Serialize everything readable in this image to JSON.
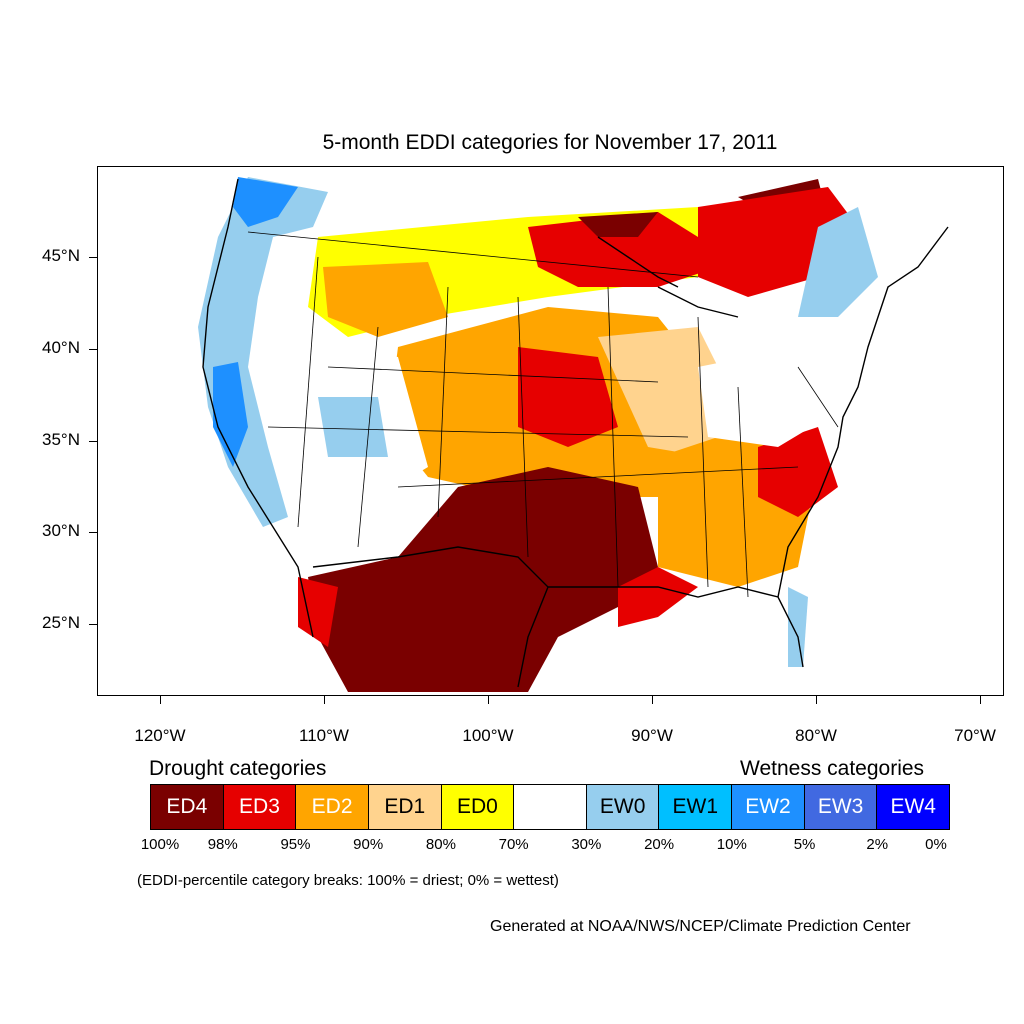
{
  "map": {
    "title": "5-month EDDI categories for November 17, 2011",
    "lat_labels": [
      "45°N",
      "40°N",
      "35°N",
      "30°N",
      "25°N"
    ],
    "lon_labels": [
      "120°W",
      "110°W",
      "100°W",
      "90°W",
      "80°W",
      "70°W"
    ],
    "regions": [
      {
        "name": "southern-plains",
        "category": "ED4",
        "color": "#7a0000"
      },
      {
        "name": "northern-great-lakes",
        "category": "ED3",
        "color": "#e60000"
      },
      {
        "name": "pacific-coast",
        "category": "EW2",
        "color": "#1e90ff"
      },
      {
        "name": "central-plains",
        "category": "ED2",
        "color": "#ffa500"
      }
    ]
  },
  "legend": {
    "drought_heading": "Drought categories",
    "wetness_heading": "Wetness categories",
    "categories": [
      {
        "label": "ED4",
        "color": "#7a0000",
        "text_color": "#ffffff"
      },
      {
        "label": "ED3",
        "color": "#e60000",
        "text_color": "#ffffff"
      },
      {
        "label": "ED2",
        "color": "#ffa500",
        "text_color": "#ffffff"
      },
      {
        "label": "ED1",
        "color": "#ffd38e",
        "text_color": "#000000"
      },
      {
        "label": "ED0",
        "color": "#ffff00",
        "text_color": "#000000"
      },
      {
        "label": "",
        "color": "#ffffff",
        "text_color": "#000000"
      },
      {
        "label": "EW0",
        "color": "#96ceee",
        "text_color": "#000000"
      },
      {
        "label": "EW1",
        "color": "#00bfff",
        "text_color": "#000000"
      },
      {
        "label": "EW2",
        "color": "#1e90ff",
        "text_color": "#ffffff"
      },
      {
        "label": "EW3",
        "color": "#4169e1",
        "text_color": "#ffffff"
      },
      {
        "label": "EW4",
        "color": "#0000ff",
        "text_color": "#ffffff"
      }
    ],
    "breaks": [
      "100%",
      "98%",
      "95%",
      "90%",
      "80%",
      "70%",
      "30%",
      "20%",
      "10%",
      "5%",
      "2%",
      "0%"
    ],
    "note": "(EDDI-percentile category breaks: 100% = driest; 0% = wettest)"
  },
  "credit": "Generated at NOAA/NWS/NCEP/Climate Prediction Center"
}
